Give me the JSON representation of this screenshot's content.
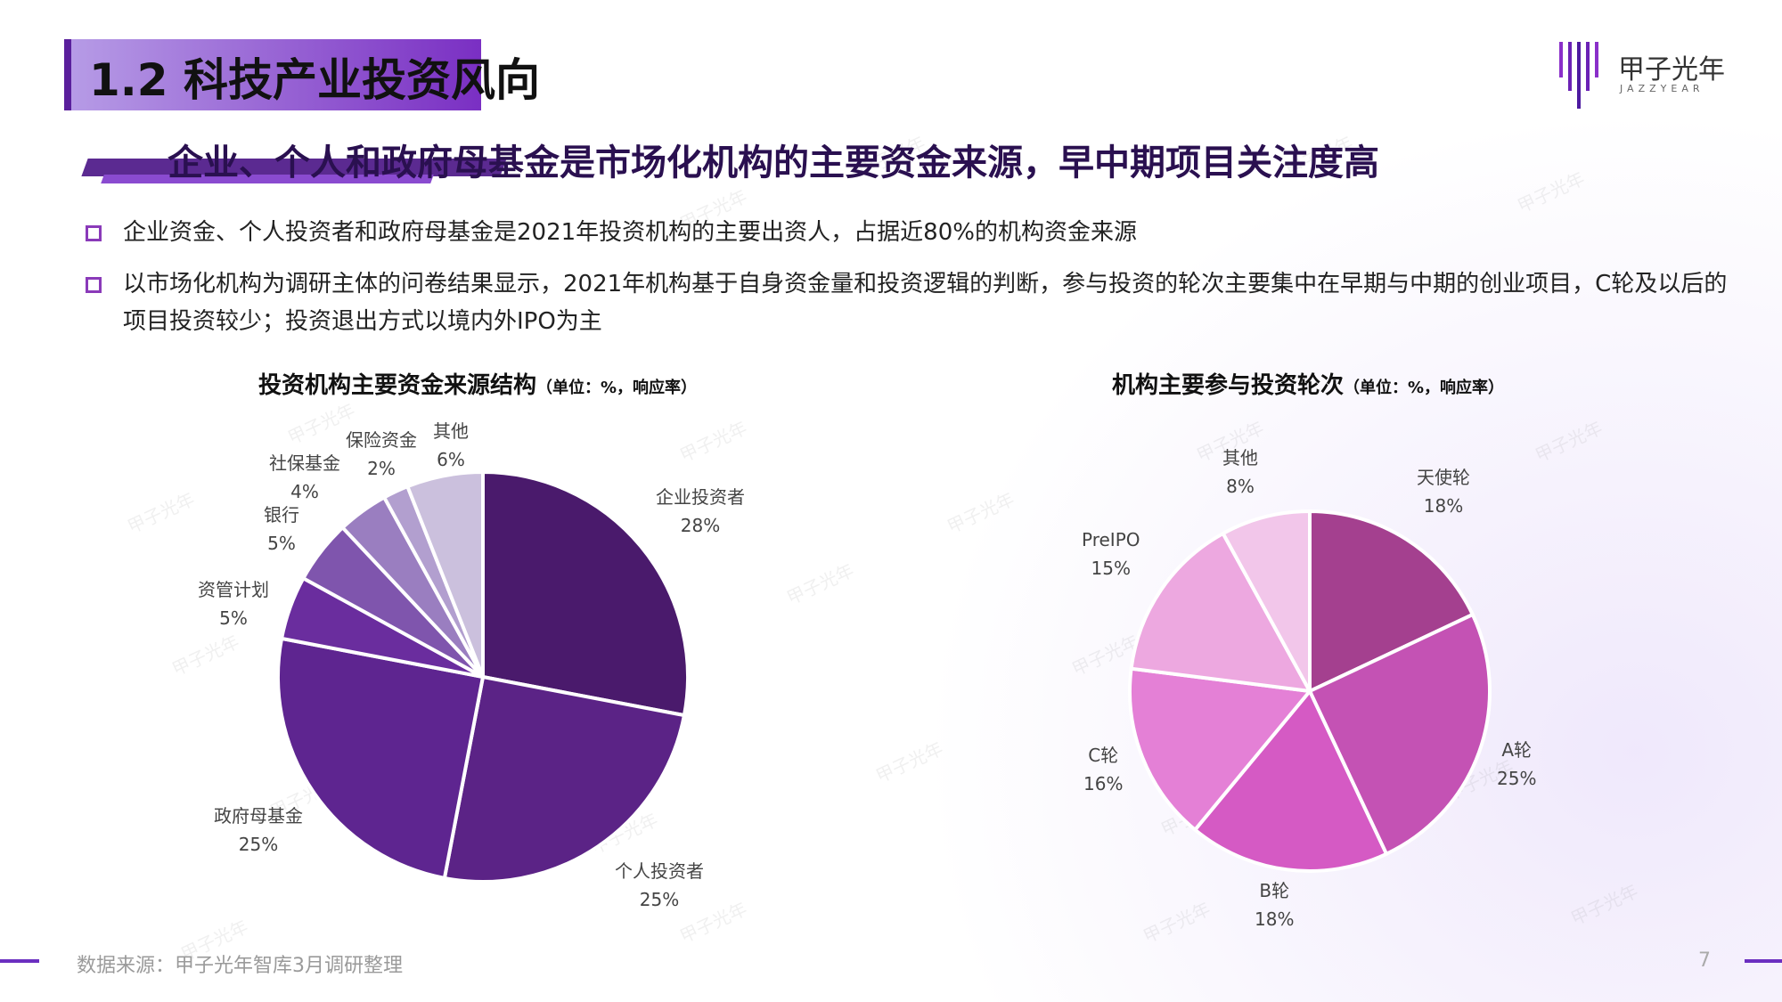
{
  "header": {
    "section_title": "1.2 科技产业投资风向",
    "headline": "企业、个人和政府母基金是市场化机构的主要资金来源，早中期项目关注度高"
  },
  "logo": {
    "name_cn": "甲子光年",
    "name_en": "JAZZYEAR",
    "icon": "jazzyear-logo-icon"
  },
  "bullets": [
    "企业资金、个人投资者和政府母基金是2021年投资机构的主要出资人，占据近80%的机构资金来源",
    "以市场化机构为调研主体的问卷结果显示，2021年机构基于自身资金量和投资逻辑的判断，参与投资的轮次主要集中在早期与中期的创业项目，C轮及以后的项目投资较少；投资退出方式以境内外IPO为主"
  ],
  "chart_data": [
    {
      "type": "pie",
      "title": "投资机构主要资金来源结构",
      "subtitle": "（单位：%，响应率）",
      "categories": [
        "企业投资者",
        "个人投资者",
        "政府母基金",
        "资管计划",
        "银行",
        "社保基金",
        "保险资金",
        "其他"
      ],
      "values": [
        28,
        25,
        25,
        5,
        5,
        4,
        2,
        6
      ],
      "value_labels": [
        "28%",
        "25%",
        "25%",
        "5%",
        "5%",
        "4%",
        "2%",
        "6%"
      ],
      "colors": [
        "#4a1a6c",
        "#5b2386",
        "#5e2590",
        "#6a2d9e",
        "#7f55ad",
        "#9a7ec0",
        "#b29fcf",
        "#cbc0dd"
      ]
    },
    {
      "type": "pie",
      "title": "机构主要参与投资轮次",
      "subtitle": "（单位：%，响应率）",
      "categories": [
        "天使轮",
        "A轮",
        "B轮",
        "C轮",
        "PreIPO",
        "其他"
      ],
      "values": [
        18,
        25,
        18,
        16,
        15,
        8
      ],
      "value_labels": [
        "18%",
        "25%",
        "18%",
        "16%",
        "15%",
        "8%"
      ],
      "colors": [
        "#a4408f",
        "#c452b4",
        "#d55ac4",
        "#e480d6",
        "#eda8e0",
        "#f2c6ea"
      ]
    }
  ],
  "footer": {
    "source": "数据来源：甲子光年智库3月调研整理",
    "page": "7"
  },
  "watermark_text": "甲子光年"
}
